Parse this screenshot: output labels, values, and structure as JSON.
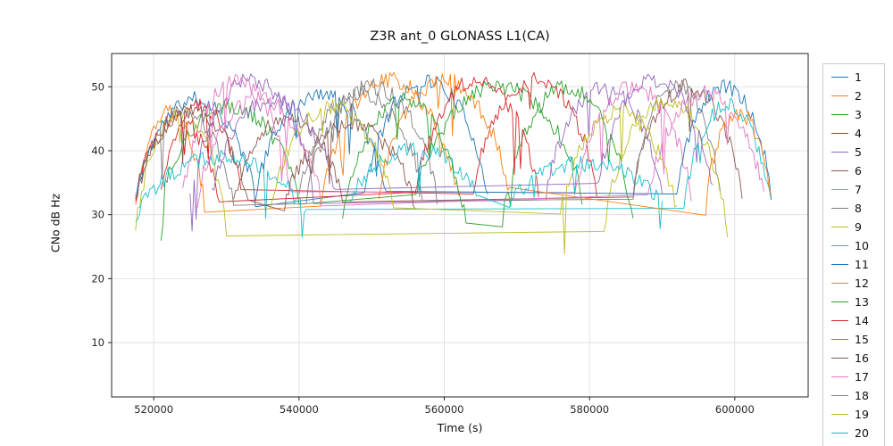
{
  "chart_data": {
    "type": "line",
    "title": "Z3R ant_0 GLONASS L1(CA)",
    "xlabel": "Time (s)",
    "ylabel": "CNo dB Hz",
    "xlim": [
      514200,
      610100
    ],
    "ylim": [
      1.5,
      55.2
    ],
    "xticks": [
      520000,
      540000,
      560000,
      580000,
      600000
    ],
    "yticks": [
      10,
      20,
      30,
      40,
      50
    ],
    "grid": true,
    "legend_position": "right-outside",
    "value_range_note": "Noisy satellite C/N0 arcs spanning ~22 to ~51 dB-Hz over t=517500..605000 s; arcs listed as [t_start, t_end, peak_dBHz] with edge value at rise/set",
    "series": [
      {
        "name": "1",
        "color": "#1f77b4",
        "edge": 28,
        "arcs": [
          [
            517500,
            534000,
            48
          ],
          [
            549000,
            566000,
            51
          ]
        ]
      },
      {
        "name": "2",
        "color": "#ff7f0e",
        "edge": 27,
        "arcs": [
          [
            517500,
            527000,
            46
          ],
          [
            543000,
            562000,
            51
          ]
        ]
      },
      {
        "name": "3",
        "color": "#2ca02c",
        "edge": 28,
        "arcs": [
          [
            521000,
            540000,
            47
          ],
          [
            556000,
            579000,
            50
          ]
        ]
      },
      {
        "name": "4",
        "color": "#d62728",
        "edge": 29,
        "arcs": [
          [
            521000,
            532000,
            47
          ],
          [
            564000,
            581000,
            51
          ]
        ]
      },
      {
        "name": "5",
        "color": "#9467bd",
        "edge": 28,
        "arcs": [
          [
            525000,
            542000,
            51
          ],
          [
            574000,
            590000,
            50
          ]
        ]
      },
      {
        "name": "6",
        "color": "#8c564b",
        "edge": 29,
        "arcs": [
          [
            531000,
            546000,
            45
          ],
          [
            586000,
            601000,
            50
          ]
        ]
      },
      {
        "name": "7",
        "color": "#e377c2",
        "edge": 28,
        "arcs": [
          [
            524000,
            539000,
            51
          ],
          [
            578000,
            594000,
            50
          ]
        ]
      },
      {
        "name": "8",
        "color": "#7f7f7f",
        "edge": 29,
        "arcs": [
          [
            540000,
            557000,
            49
          ],
          [
            586000,
            598000,
            50
          ]
        ]
      },
      {
        "name": "9",
        "color": "#bcbd22",
        "edge": 22,
        "arcs": [
          [
            517500,
            530000,
            46
          ],
          [
            582000,
            599000,
            48
          ]
        ]
      },
      {
        "name": "10",
        "color": "#17becf",
        "edge": 27,
        "arcs": [
          [
            517500,
            541000,
            39
          ],
          [
            593000,
            605000,
            47
          ]
        ]
      },
      {
        "name": "11",
        "color": "#1f77b4",
        "edge": 29,
        "arcs": [
          [
            534000,
            552000,
            49
          ],
          [
            592000,
            605000,
            50
          ]
        ]
      },
      {
        "name": "12",
        "color": "#ff7f0e",
        "edge": 28,
        "arcs": [
          [
            551000,
            569000,
            51
          ],
          [
            596000,
            605000,
            46
          ]
        ]
      },
      {
        "name": "13",
        "color": "#2ca02c",
        "edge": 23,
        "arcs": [
          [
            546000,
            563000,
            48
          ],
          [
            568000,
            586000,
            50
          ]
        ]
      },
      {
        "name": "14",
        "color": "#d62728",
        "edge": 28,
        "arcs": [
          [
            517500,
            529000,
            45
          ],
          [
            556000,
            573000,
            51
          ]
        ]
      },
      {
        "name": "15",
        "color": "#9467bd",
        "edge": 29,
        "arcs": [
          [
            528000,
            545000,
            48
          ],
          [
            581000,
            597000,
            51
          ]
        ]
      },
      {
        "name": "16",
        "color": "#8c564b",
        "edge": 28,
        "arcs": [
          [
            517500,
            533000,
            46
          ],
          [
            538000,
            556000,
            44
          ]
        ]
      },
      {
        "name": "17",
        "color": "#e377c2",
        "edge": 28,
        "arcs": [
          [
            526000,
            543000,
            48
          ],
          [
            588000,
            604000,
            49
          ]
        ]
      },
      {
        "name": "18",
        "color": "#7f7f7f",
        "edge": 28,
        "arcs": [
          [
            517500,
            531000,
            46
          ],
          [
            541000,
            559000,
            50
          ]
        ]
      },
      {
        "name": "19",
        "color": "#bcbd22",
        "edge": 26,
        "arcs": [
          [
            536000,
            553000,
            47
          ],
          [
            576000,
            592000,
            46
          ]
        ]
      },
      {
        "name": "20",
        "color": "#17becf",
        "edge": 30,
        "arcs": [
          [
            547000,
            565000,
            40
          ],
          [
            569000,
            590000,
            38
          ]
        ]
      }
    ]
  }
}
